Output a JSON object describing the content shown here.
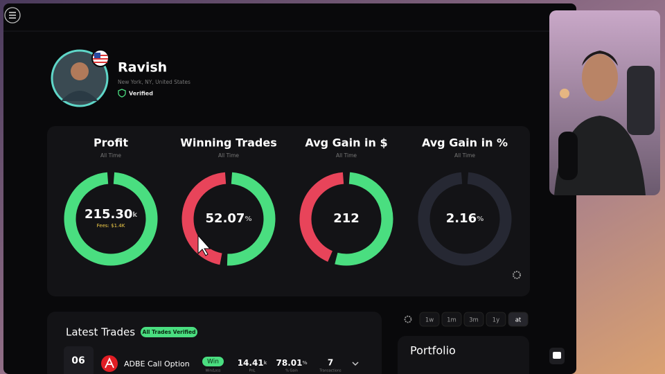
{
  "profile": {
    "name": "Ravish",
    "location": "New York, NY, United States",
    "badge": "Verified"
  },
  "stats": [
    {
      "title": "Profit",
      "period": "All Time",
      "value": "215.30",
      "unit": "k",
      "note": "Fees: $1.4K"
    },
    {
      "title": "Winning Trades",
      "period": "All Time",
      "value": "52.07",
      "unit": "%"
    },
    {
      "title": "Avg Gain in $",
      "period": "All Time",
      "value": "212"
    },
    {
      "title": "Avg Gain in %",
      "period": "All Time",
      "value": "2.16",
      "unit": "%"
    }
  ],
  "latest_trades": {
    "title": "Latest Trades",
    "badge": "All Trades Verified",
    "rows": [
      {
        "date": "06",
        "name": "ADBE Call Option",
        "result": "Win",
        "result_label": "Win/Loss",
        "pnl": "14.41",
        "pnl_unit": "k",
        "pnl_label": "PnL",
        "gain": "78.01",
        "gain_unit": "%",
        "gain_label": "% Gain",
        "transactions": "7",
        "transactions_label": "Transactions"
      }
    ]
  },
  "timeframes": [
    "1w",
    "1m",
    "3m",
    "1y",
    "at"
  ],
  "portfolio": {
    "title": "Portfolio"
  }
}
